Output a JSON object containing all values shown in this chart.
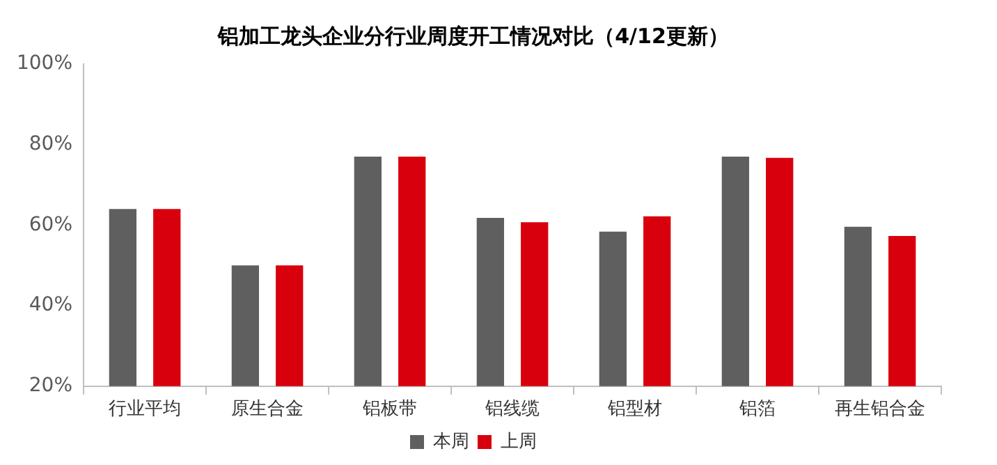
{
  "chart_data": {
    "type": "bar",
    "title": "铝加工龙头企业分行业周度开工情况对比（4/12更新）",
    "categories": [
      "行业平均",
      "原生合金",
      "铝板带",
      "铝线缆",
      "铝型材",
      "铝箔",
      "再生铝合金"
    ],
    "series": [
      {
        "name": "本周",
        "color": "#5f5f5f",
        "values": [
          64,
          50,
          77,
          61.8,
          58.4,
          77,
          59.6
        ]
      },
      {
        "name": "上周",
        "color": "#d9000d",
        "values": [
          64,
          50,
          77,
          60.7,
          62.2,
          76.7,
          57.3
        ]
      }
    ],
    "ylim": [
      20,
      100
    ],
    "yticks": [
      {
        "value": 20,
        "label": "20%"
      },
      {
        "value": 40,
        "label": "40%"
      },
      {
        "value": 60,
        "label": "60%"
      },
      {
        "value": 80,
        "label": "80%"
      },
      {
        "value": 100,
        "label": "100%"
      }
    ],
    "grid": false,
    "legend": "bottom"
  }
}
